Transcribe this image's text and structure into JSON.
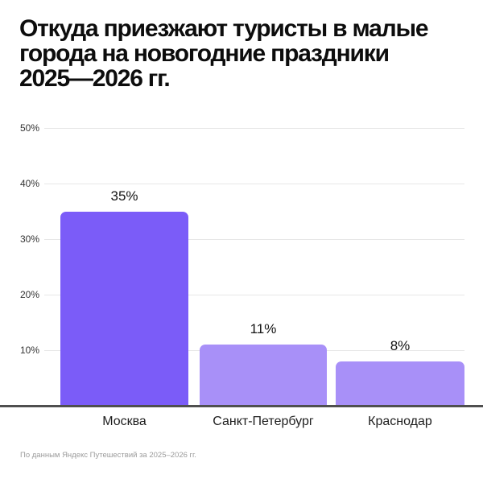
{
  "header": {
    "title_lines": [
      "Откуда приезжают туристы в малые",
      "города на новогодние праздники",
      "2025—2026 гг."
    ]
  },
  "footer": {
    "source_note": "По данным Яндекс Путешествий за 2025–2026 гг."
  },
  "chart_data": {
    "type": "bar",
    "title": "Откуда приезжают туристы в малые города на новогодние праздники 2025—2026 гг.",
    "categories": [
      "Москва",
      "Санкт-Петербург",
      "Краснодар"
    ],
    "values": [
      35,
      11,
      8
    ],
    "value_labels": [
      "35%",
      "11%",
      "8%"
    ],
    "ytick_values": [
      10,
      20,
      30,
      40,
      50
    ],
    "ytick_labels": [
      "10%",
      "20%",
      "30%",
      "40%",
      "50%"
    ],
    "ylim": [
      0,
      50
    ],
    "grid": true,
    "legend": "none",
    "source": "По данным Яндекс Путешествий за 2025–2026 гг.",
    "colors": {
      "bar_fills": [
        "#7B5CF8",
        "#A890F8",
        "#A890F8"
      ],
      "gridline": "#e7e7e7",
      "baseline": "#4f4f4f",
      "value_text": "#141414",
      "tick_text": "#333333",
      "category_text": "#1e1e1e",
      "title_text": "#0d0d0d",
      "source_text": "#9b9b9b"
    }
  }
}
